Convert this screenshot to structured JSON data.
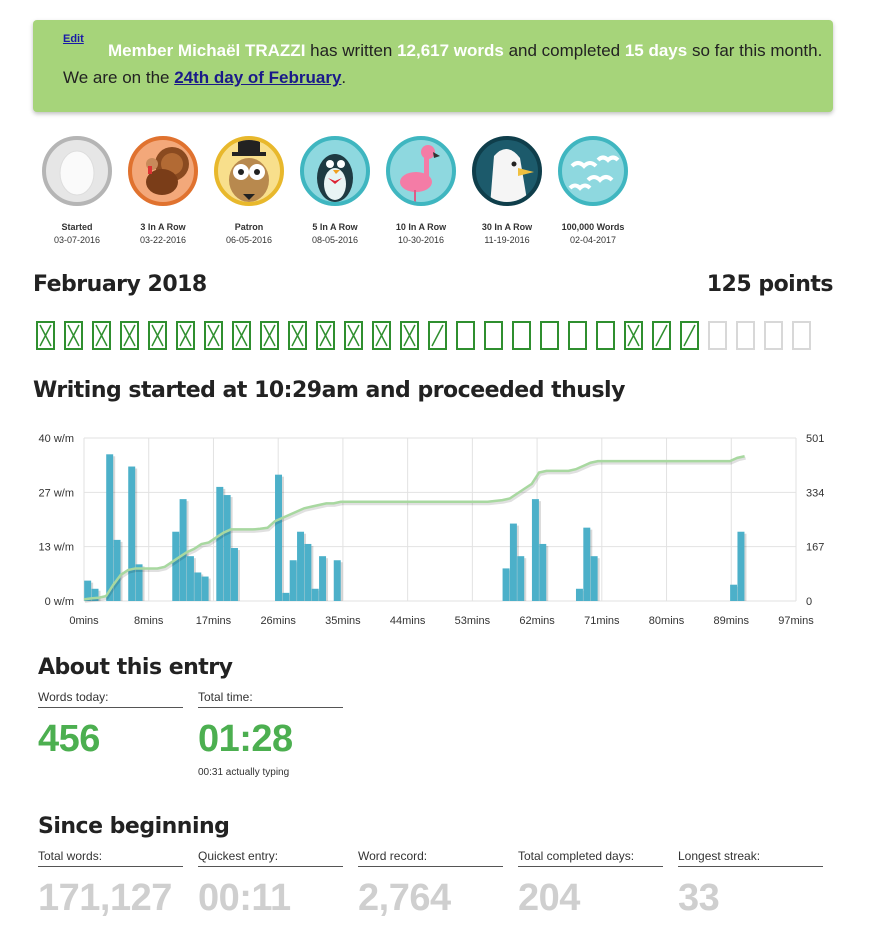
{
  "banner": {
    "edit_label": "Edit",
    "member_prefix": "Member Michaël TRAZZI",
    "text1": " has written ",
    "words": "12,617 words",
    "text2": " and completed ",
    "days": "15 days",
    "text3": " so far this month. We are on the ",
    "day_link": "24th day of February",
    "text4": "."
  },
  "badges": [
    {
      "name": "Started",
      "date": "03-07-2016",
      "icon": "egg-icon",
      "bg": "#e6e6e6",
      "ring": "#b5b5b5"
    },
    {
      "name": "3 In A Row",
      "date": "03-22-2016",
      "icon": "turkey-icon",
      "bg": "#f3a87a",
      "ring": "#e0722f"
    },
    {
      "name": "Patron",
      "date": "06-05-2016",
      "icon": "owl-icon",
      "bg": "#f8df8c",
      "ring": "#e8b82c"
    },
    {
      "name": "5 In A Row",
      "date": "08-05-2016",
      "icon": "penguin-icon",
      "bg": "#8ed8df",
      "ring": "#3fb6c0"
    },
    {
      "name": "10 In A Row",
      "date": "10-30-2016",
      "icon": "flamingo-icon",
      "bg": "#8ed8df",
      "ring": "#3fb6c0"
    },
    {
      "name": "30 In A Row",
      "date": "11-19-2016",
      "icon": "seagull-icon",
      "bg": "#1c5a6b",
      "ring": "#0f3e4b"
    },
    {
      "name": "100,000 Words",
      "date": "02-04-2017",
      "icon": "seagulls-flock-icon",
      "bg": "#8ed8df",
      "ring": "#3fb6c0"
    }
  ],
  "month": {
    "title": "February 2018",
    "points": "125 points",
    "days": [
      "x",
      "x",
      "x",
      "x",
      "x",
      "x",
      "x",
      "x",
      "x",
      "x",
      "x",
      "x",
      "x",
      "x",
      "/",
      "",
      "",
      "",
      "",
      "",
      "",
      "x",
      "/",
      "/",
      "future",
      "future",
      "future",
      "future"
    ]
  },
  "subtitle": "Writing started at 10:29am and proceeded thusly",
  "chart_data": {
    "type": "bar",
    "x_ticks": [
      "0mins",
      "8mins",
      "17mins",
      "26mins",
      "35mins",
      "44mins",
      "53mins",
      "62mins",
      "71mins",
      "80mins",
      "89mins",
      "97mins"
    ],
    "y_left_ticks": [
      "0 w/m",
      "13 w/m",
      "27 w/m",
      "40 w/m"
    ],
    "y_right_ticks": [
      "0",
      "167",
      "334",
      "501"
    ],
    "y_left_max": 40,
    "y_right_max": 501,
    "x_max": 97,
    "bars": [
      {
        "x": 0.5,
        "v": 5
      },
      {
        "x": 1.5,
        "v": 3
      },
      {
        "x": 3.5,
        "v": 36
      },
      {
        "x": 4.5,
        "v": 15
      },
      {
        "x": 6.5,
        "v": 33
      },
      {
        "x": 7.5,
        "v": 9
      },
      {
        "x": 12.5,
        "v": 17
      },
      {
        "x": 13.5,
        "v": 25
      },
      {
        "x": 14.5,
        "v": 11
      },
      {
        "x": 15.5,
        "v": 7
      },
      {
        "x": 16.5,
        "v": 6
      },
      {
        "x": 18.5,
        "v": 28
      },
      {
        "x": 19.5,
        "v": 26
      },
      {
        "x": 20.5,
        "v": 13
      },
      {
        "x": 26.5,
        "v": 31
      },
      {
        "x": 27.5,
        "v": 2
      },
      {
        "x": 28.5,
        "v": 10
      },
      {
        "x": 29.5,
        "v": 17
      },
      {
        "x": 30.5,
        "v": 14
      },
      {
        "x": 31.5,
        "v": 3
      },
      {
        "x": 32.5,
        "v": 11
      },
      {
        "x": 34.5,
        "v": 10
      },
      {
        "x": 57.5,
        "v": 8
      },
      {
        "x": 58.5,
        "v": 19
      },
      {
        "x": 59.5,
        "v": 11
      },
      {
        "x": 61.5,
        "v": 25
      },
      {
        "x": 62.5,
        "v": 14
      },
      {
        "x": 67.5,
        "v": 3
      },
      {
        "x": 68.5,
        "v": 18
      },
      {
        "x": 69.5,
        "v": 11
      },
      {
        "x": 88.5,
        "v": 4
      },
      {
        "x": 89.5,
        "v": 17
      }
    ],
    "cumulative": [
      [
        0,
        5
      ],
      [
        1,
        8
      ],
      [
        2,
        10
      ],
      [
        3,
        15
      ],
      [
        4,
        50
      ],
      [
        5,
        80
      ],
      [
        6,
        95
      ],
      [
        7,
        100
      ],
      [
        8,
        100
      ],
      [
        9,
        100
      ],
      [
        10,
        100
      ],
      [
        11,
        105
      ],
      [
        12,
        120
      ],
      [
        13,
        135
      ],
      [
        14,
        150
      ],
      [
        15,
        160
      ],
      [
        16,
        175
      ],
      [
        17,
        180
      ],
      [
        18,
        195
      ],
      [
        19,
        210
      ],
      [
        20,
        220
      ],
      [
        21,
        220
      ],
      [
        22,
        220
      ],
      [
        23,
        220
      ],
      [
        24,
        222
      ],
      [
        25,
        225
      ],
      [
        26,
        245
      ],
      [
        27,
        255
      ],
      [
        28,
        265
      ],
      [
        29,
        275
      ],
      [
        30,
        285
      ],
      [
        31,
        290
      ],
      [
        32,
        295
      ],
      [
        33,
        300
      ],
      [
        34,
        300
      ],
      [
        35,
        305
      ],
      [
        40,
        305
      ],
      [
        50,
        305
      ],
      [
        55,
        305
      ],
      [
        57,
        310
      ],
      [
        58,
        315
      ],
      [
        59,
        330
      ],
      [
        60,
        345
      ],
      [
        61,
        360
      ],
      [
        62,
        395
      ],
      [
        63,
        400
      ],
      [
        64,
        400
      ],
      [
        65,
        400
      ],
      [
        66,
        400
      ],
      [
        67,
        405
      ],
      [
        68,
        415
      ],
      [
        69,
        425
      ],
      [
        70,
        430
      ],
      [
        71,
        430
      ],
      [
        80,
        430
      ],
      [
        85,
        430
      ],
      [
        88,
        430
      ],
      [
        89,
        440
      ],
      [
        90,
        445
      ]
    ],
    "bar_color": "#4cb0c9",
    "line_color": "#a8d8a0"
  },
  "about": {
    "title": "About this entry",
    "words_label": "Words today:",
    "words_value": "456",
    "time_label": "Total time:",
    "time_value": "01:28",
    "typing_note": "00:31 actually typing"
  },
  "since": {
    "title": "Since beginning",
    "stats": [
      {
        "label": "Total words:",
        "value": "171,127"
      },
      {
        "label": "Quickest entry:",
        "value": "00:11"
      },
      {
        "label": "Word record:",
        "value": "2,764"
      },
      {
        "label": "Total completed days:",
        "value": "204"
      },
      {
        "label": "Longest streak:",
        "value": "33"
      }
    ]
  }
}
